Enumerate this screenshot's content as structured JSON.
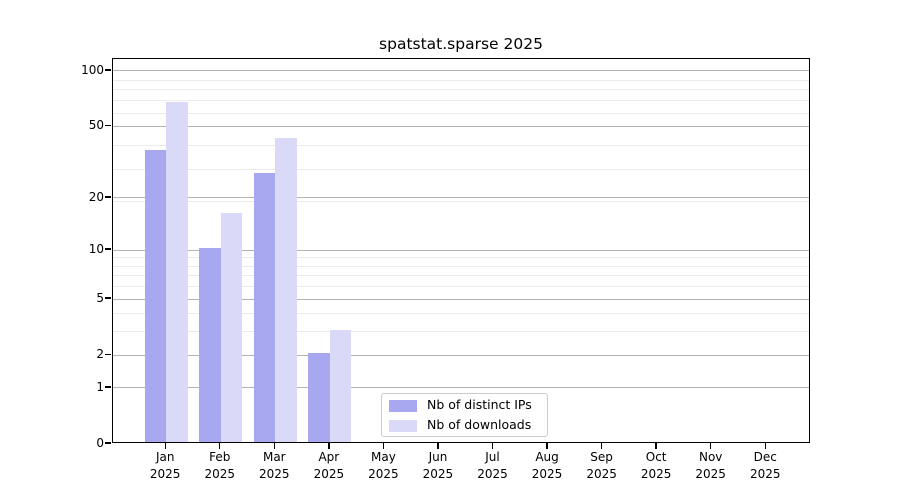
{
  "title": "spatstat.sparse 2025",
  "legend": {
    "items": [
      {
        "label": "Nb of distinct IPs",
        "color": "#a8a8f0"
      },
      {
        "label": "Nb of downloads",
        "color": "#dadaf8"
      }
    ]
  },
  "chart_data": {
    "type": "bar",
    "title": "spatstat.sparse 2025",
    "categories": [
      "Jan 2025",
      "Feb 2025",
      "Mar 2025",
      "Apr 2025",
      "May 2025",
      "Jun 2025",
      "Jul 2025",
      "Aug 2025",
      "Sep 2025",
      "Oct 2025",
      "Nov 2025",
      "Dec 2025"
    ],
    "series": [
      {
        "name": "Nb of distinct IPs",
        "color": "#a8a8f0",
        "values": [
          36,
          10,
          27,
          2,
          0,
          0,
          0,
          0,
          0,
          0,
          0,
          0
        ]
      },
      {
        "name": "Nb of downloads",
        "color": "#dadaf8",
        "values": [
          66,
          16,
          42,
          3,
          0,
          0,
          0,
          0,
          0,
          0,
          0,
          0
        ]
      }
    ],
    "xlabel": "",
    "ylabel": "",
    "yscale": "log10(1+value)",
    "ylim": [
      0,
      117
    ],
    "yticks": [
      0,
      1,
      2,
      5,
      10,
      20,
      50,
      100
    ],
    "minor_gridline_values": [
      3,
      4,
      6,
      7,
      8,
      9,
      19,
      29,
      39,
      59,
      69,
      79,
      89
    ],
    "grid": true,
    "legend_position": "lower center",
    "colors": {
      "grid_major": "#b4b4b4",
      "grid_minor": "#ebebeb",
      "axis": "#000000",
      "background": "#ffffff"
    }
  }
}
